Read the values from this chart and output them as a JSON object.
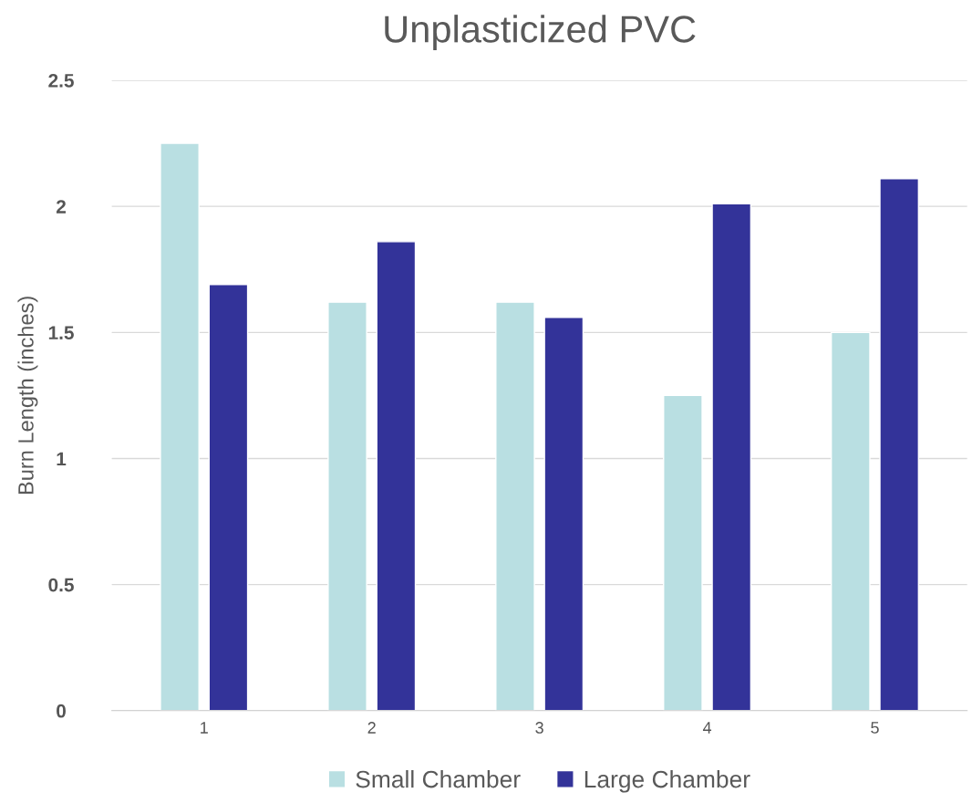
{
  "chart_data": {
    "type": "bar",
    "title": "Unplasticized PVC",
    "ylabel": "Burn Length (inches)",
    "categories": [
      "1",
      "2",
      "3",
      "4",
      "5"
    ],
    "series": [
      {
        "name": "Small Chamber",
        "color": "#b9dfe2",
        "values": [
          2.25,
          1.62,
          1.62,
          1.25,
          1.5
        ]
      },
      {
        "name": "Large Chamber",
        "color": "#333399",
        "values": [
          1.69,
          1.86,
          1.56,
          2.01,
          2.11
        ]
      }
    ],
    "ylim": [
      0,
      2.5
    ],
    "yticks": [
      0,
      0.5,
      1,
      1.5,
      2,
      2.5
    ],
    "grid": "y",
    "legend": "bottom"
  }
}
